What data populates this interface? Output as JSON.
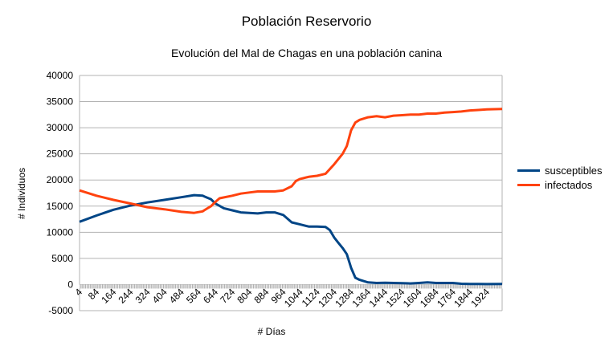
{
  "title": "Población Reservorio",
  "subtitle": "Evolución del Mal de Chagas en una población canina",
  "chart_data": {
    "type": "line",
    "title": "Población Reservorio",
    "subtitle": "Evolución del Mal de Chagas en una población canina",
    "xlabel": "# Días",
    "ylabel": "# Individuos",
    "xlim": [
      4,
      1996
    ],
    "ylim": [
      -5000,
      40000
    ],
    "y_ticks": [
      -5000,
      0,
      5000,
      10000,
      15000,
      20000,
      25000,
      30000,
      35000,
      40000
    ],
    "x_tick_labels": [
      "4",
      "84",
      "164",
      "244",
      "324",
      "404",
      "484",
      "564",
      "644",
      "724",
      "804",
      "884",
      "964",
      "1044",
      "1124",
      "1204",
      "1284",
      "1364",
      "1444",
      "1524",
      "1604",
      "1684",
      "1764",
      "1844",
      "1924"
    ],
    "grid": "horizontal",
    "legend_position": "right",
    "series": [
      {
        "name": "susceptibles",
        "color": "#004586",
        "points": [
          [
            4,
            12000
          ],
          [
            84,
            13200
          ],
          [
            164,
            14300
          ],
          [
            244,
            15100
          ],
          [
            324,
            15700
          ],
          [
            404,
            16200
          ],
          [
            484,
            16700
          ],
          [
            544,
            17100
          ],
          [
            584,
            17000
          ],
          [
            624,
            16300
          ],
          [
            644,
            15500
          ],
          [
            684,
            14600
          ],
          [
            724,
            14200
          ],
          [
            764,
            13800
          ],
          [
            804,
            13700
          ],
          [
            844,
            13600
          ],
          [
            884,
            13800
          ],
          [
            924,
            13800
          ],
          [
            964,
            13300
          ],
          [
            984,
            12600
          ],
          [
            1004,
            11900
          ],
          [
            1044,
            11500
          ],
          [
            1084,
            11100
          ],
          [
            1124,
            11100
          ],
          [
            1164,
            11000
          ],
          [
            1184,
            10400
          ],
          [
            1204,
            9000
          ],
          [
            1224,
            8000
          ],
          [
            1244,
            7000
          ],
          [
            1264,
            5800
          ],
          [
            1284,
            3200
          ],
          [
            1304,
            1300
          ],
          [
            1324,
            900
          ],
          [
            1364,
            400
          ],
          [
            1404,
            300
          ],
          [
            1444,
            350
          ],
          [
            1484,
            300
          ],
          [
            1524,
            250
          ],
          [
            1564,
            200
          ],
          [
            1604,
            300
          ],
          [
            1644,
            400
          ],
          [
            1684,
            300
          ],
          [
            1724,
            300
          ],
          [
            1764,
            300
          ],
          [
            1804,
            150
          ],
          [
            1844,
            100
          ],
          [
            1884,
            100
          ],
          [
            1924,
            80
          ],
          [
            1996,
            100
          ]
        ]
      },
      {
        "name": "infectados",
        "color": "#ff420e",
        "points": [
          [
            4,
            18000
          ],
          [
            84,
            17000
          ],
          [
            164,
            16200
          ],
          [
            244,
            15500
          ],
          [
            324,
            14800
          ],
          [
            404,
            14400
          ],
          [
            484,
            13900
          ],
          [
            544,
            13700
          ],
          [
            584,
            14000
          ],
          [
            604,
            14500
          ],
          [
            624,
            15000
          ],
          [
            644,
            15800
          ],
          [
            664,
            16500
          ],
          [
            724,
            17000
          ],
          [
            764,
            17400
          ],
          [
            804,
            17600
          ],
          [
            844,
            17800
          ],
          [
            884,
            17800
          ],
          [
            924,
            17800
          ],
          [
            964,
            18000
          ],
          [
            1004,
            18800
          ],
          [
            1024,
            19800
          ],
          [
            1044,
            20200
          ],
          [
            1084,
            20600
          ],
          [
            1124,
            20800
          ],
          [
            1164,
            21200
          ],
          [
            1204,
            23000
          ],
          [
            1244,
            25000
          ],
          [
            1264,
            26500
          ],
          [
            1284,
            29500
          ],
          [
            1304,
            31000
          ],
          [
            1324,
            31500
          ],
          [
            1364,
            32000
          ],
          [
            1404,
            32200
          ],
          [
            1444,
            32000
          ],
          [
            1484,
            32300
          ],
          [
            1524,
            32400
          ],
          [
            1564,
            32500
          ],
          [
            1604,
            32500
          ],
          [
            1644,
            32700
          ],
          [
            1684,
            32700
          ],
          [
            1724,
            32900
          ],
          [
            1764,
            33000
          ],
          [
            1804,
            33100
          ],
          [
            1844,
            33300
          ],
          [
            1884,
            33400
          ],
          [
            1924,
            33500
          ],
          [
            1996,
            33600
          ]
        ]
      }
    ]
  }
}
